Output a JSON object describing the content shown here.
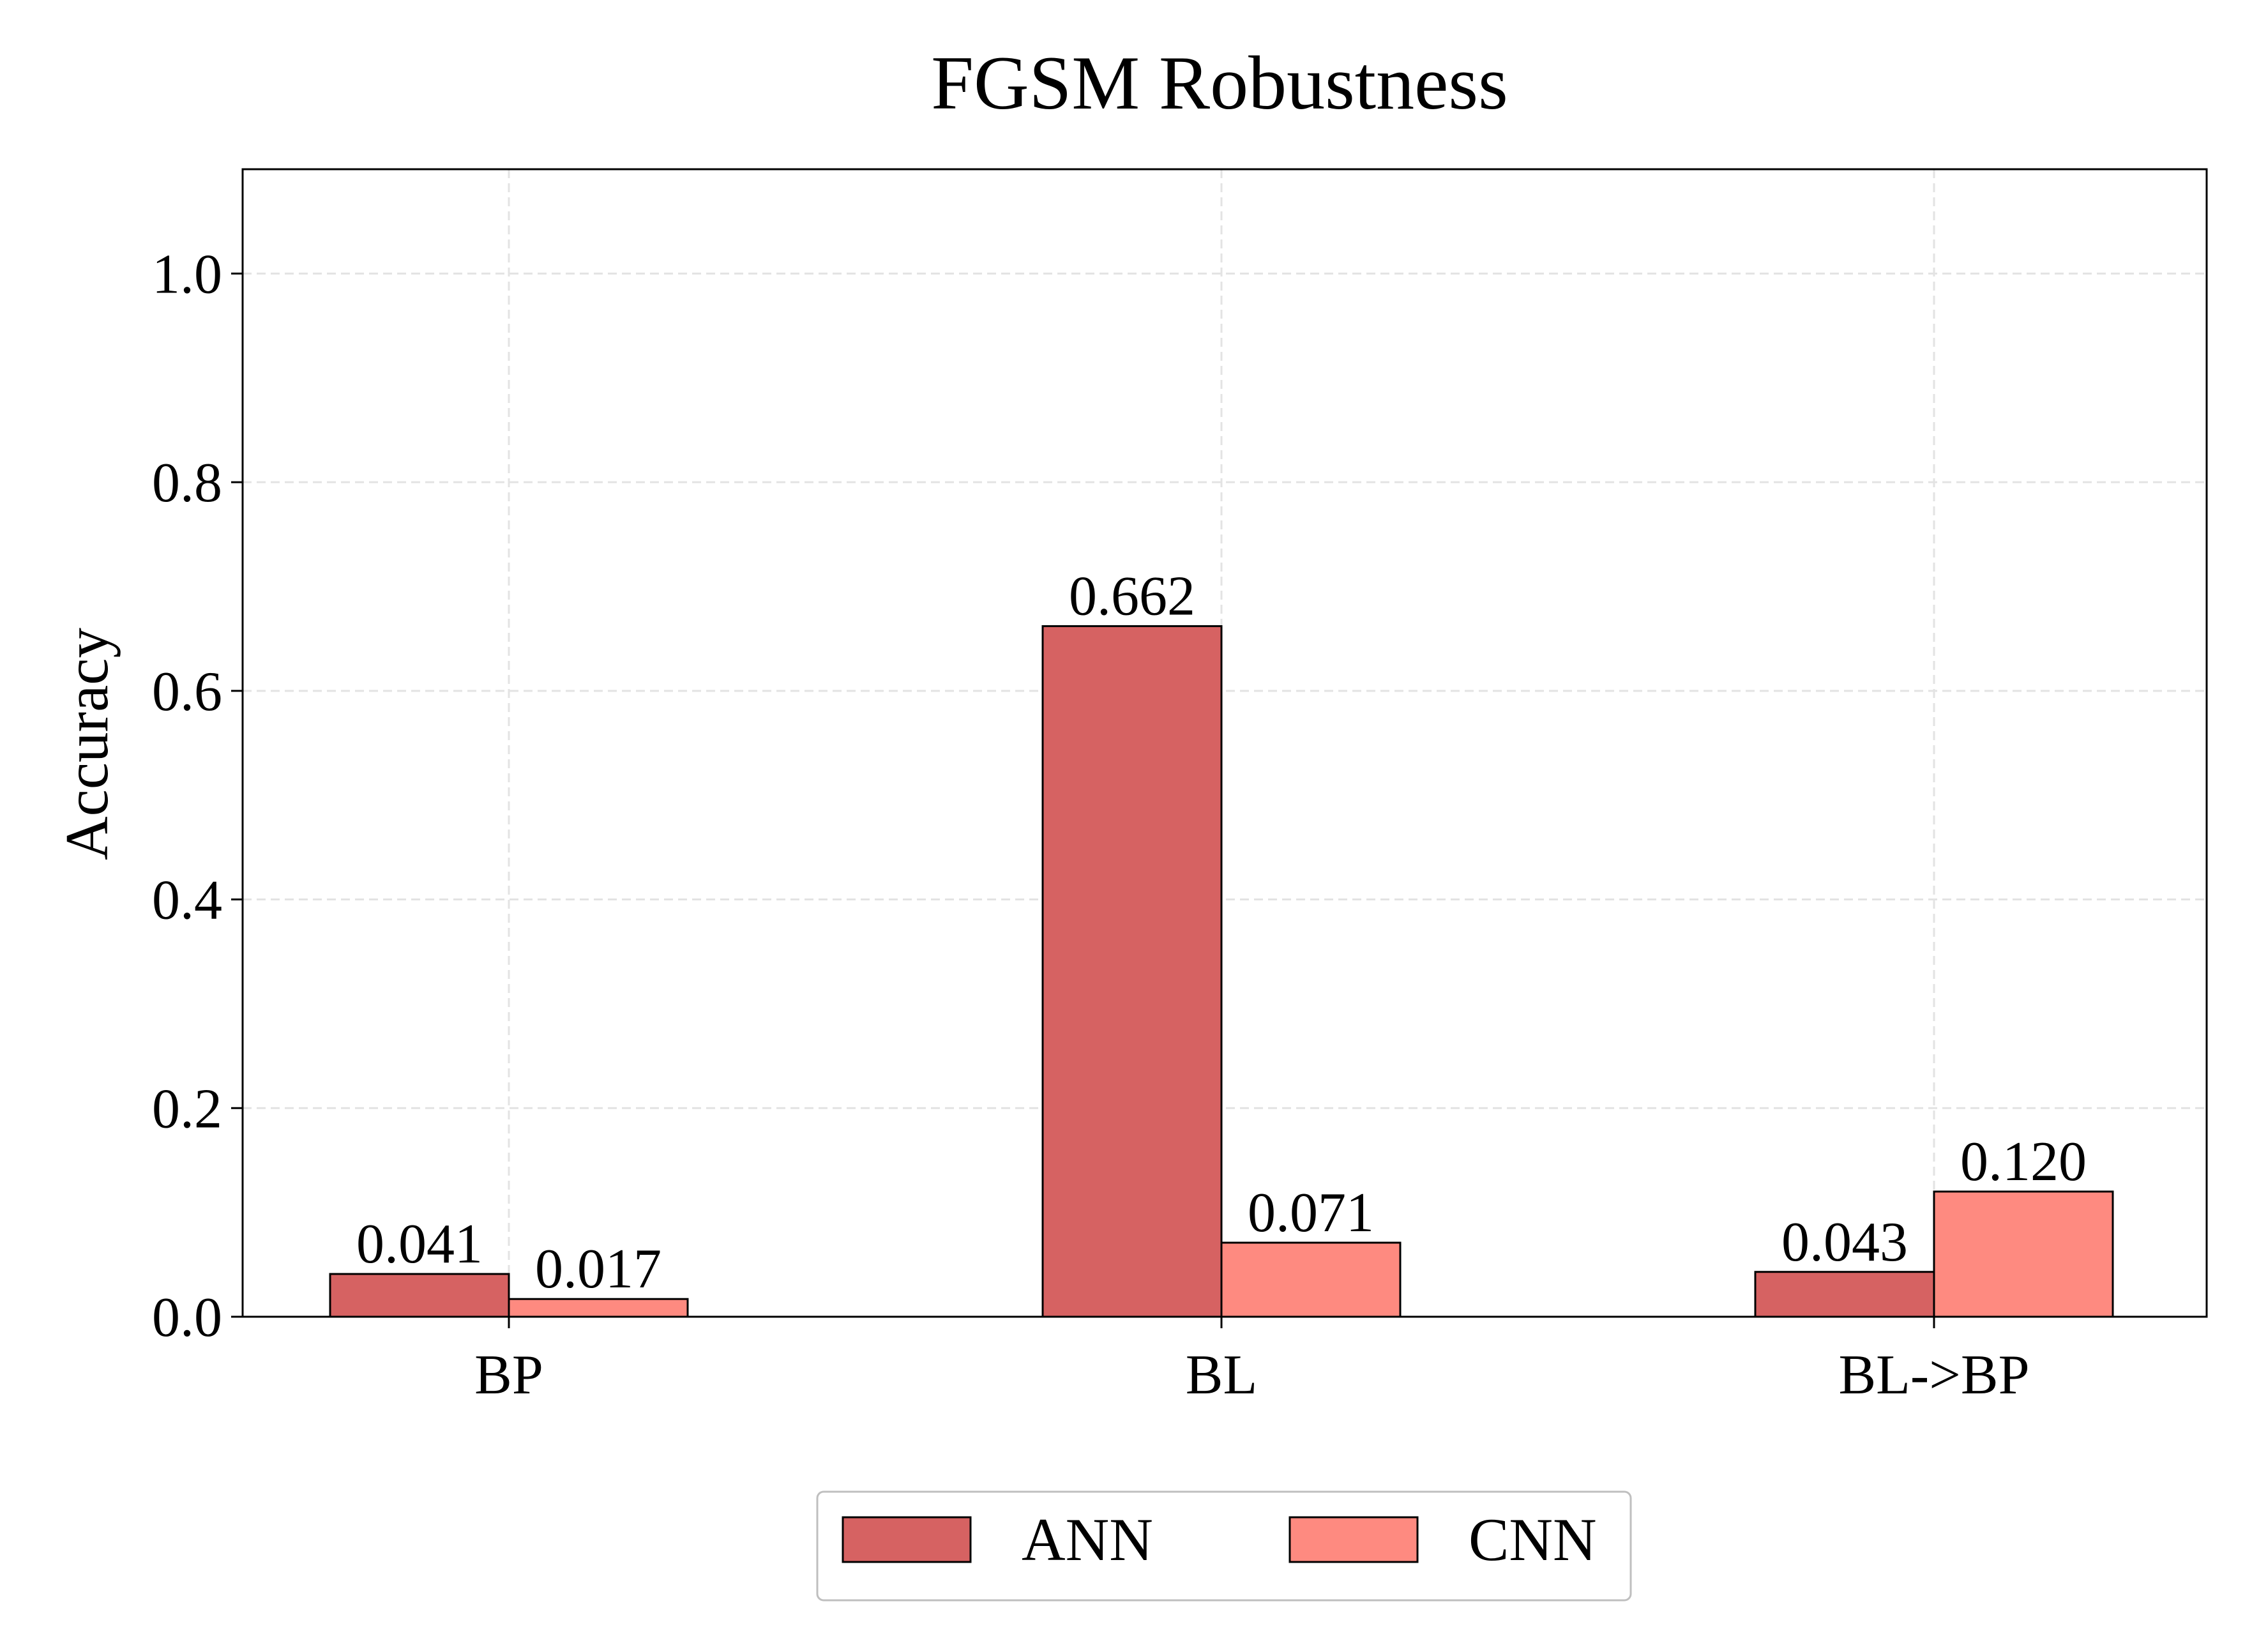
{
  "chart_data": {
    "type": "bar",
    "title": "FGSM Robustness",
    "xlabel": "",
    "ylabel": "Accuracy",
    "categories": [
      "BP",
      "BL",
      "BL->BP"
    ],
    "series": [
      {
        "name": "ANN",
        "values": [
          0.041,
          0.662,
          0.043
        ],
        "labels": [
          "0.041",
          "0.662",
          "0.043"
        ],
        "color": "#d66262"
      },
      {
        "name": "CNN",
        "values": [
          0.017,
          0.071,
          0.12
        ],
        "labels": [
          "0.017",
          "0.071",
          "0.120"
        ],
        "color": "#fe8a80"
      }
    ],
    "ylim": [
      0,
      1.1
    ],
    "yticks": [
      0.0,
      0.2,
      0.4,
      0.6,
      0.8,
      1.0
    ],
    "ytick_labels": [
      "0.0",
      "0.2",
      "0.4",
      "0.6",
      "0.8",
      "1.0"
    ],
    "grid": true,
    "legend_position": "bottom-center"
  }
}
